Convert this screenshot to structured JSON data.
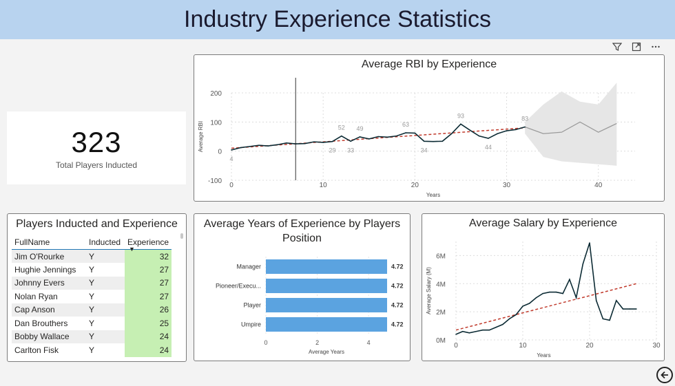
{
  "header": {
    "title": "Industry Experience Statistics"
  },
  "kpi": {
    "value": "323",
    "label": "Total Players Inducted"
  },
  "toolbar": {
    "icons": [
      "filter-icon",
      "focus-mode-icon",
      "more-options-icon"
    ]
  },
  "rbi_chart": {
    "title": "Average RBI by Experience",
    "ylabel": "Average RBI",
    "xlabel": "Years",
    "yticks": [
      "200",
      "100",
      "0",
      "-100"
    ],
    "xticks": [
      "0",
      "10",
      "20",
      "30",
      "40"
    ],
    "data_labels": [
      "4",
      "29",
      "52",
      "33",
      "49",
      "63",
      "34",
      "93",
      "44",
      "83"
    ]
  },
  "table": {
    "title": "Players Inducted and Experience",
    "columns": [
      "FullName",
      "Inducted",
      "Experience"
    ],
    "rows": [
      [
        "Jim O'Rourke",
        "Y",
        "32"
      ],
      [
        "Hughie Jennings",
        "Y",
        "27"
      ],
      [
        "Johnny Evers",
        "Y",
        "27"
      ],
      [
        "Nolan Ryan",
        "Y",
        "27"
      ],
      [
        "Cap Anson",
        "Y",
        "26"
      ],
      [
        "Dan Brouthers",
        "Y",
        "25"
      ],
      [
        "Bobby Wallace",
        "Y",
        "24"
      ],
      [
        "Carlton Fisk",
        "Y",
        "24"
      ]
    ]
  },
  "bar_chart": {
    "title_line1": "Average Years of Experience by Players",
    "title_line2": "Position",
    "xlabel": "Average Years",
    "xticks": [
      "0",
      "2",
      "4"
    ]
  },
  "salary_chart": {
    "title": "Average Salary by Experience",
    "ylabel": "Average Salary (M)",
    "xlabel": "Years",
    "yticks": [
      "6M",
      "4M",
      "2M",
      "0M"
    ],
    "xticks": [
      "0",
      "10",
      "20",
      "30"
    ]
  },
  "chart_data": [
    {
      "type": "line",
      "title": "Average RBI by Experience",
      "xlabel": "Years",
      "ylabel": "Average RBI",
      "xlim": [
        0,
        44
      ],
      "ylim": [
        -100,
        200
      ],
      "x": [
        0,
        1,
        2,
        3,
        4,
        5,
        6,
        7,
        8,
        9,
        10,
        11,
        12,
        13,
        14,
        15,
        16,
        17,
        18,
        19,
        20,
        21,
        22,
        23,
        24,
        25,
        26,
        27,
        28,
        29,
        30,
        31,
        32
      ],
      "series": [
        {
          "values": [
            4,
            12,
            16,
            20,
            18,
            22,
            28,
            25,
            26,
            32,
            30,
            33,
            52,
            34,
            49,
            42,
            50,
            48,
            52,
            63,
            62,
            34,
            33,
            34,
            60,
            93,
            72,
            52,
            44,
            60,
            70,
            74,
            83
          ]
        }
      ],
      "trendline": {
        "from": [
          0,
          10
        ],
        "to": [
          32,
          80
        ]
      },
      "forecast": {
        "x": [
          32,
          34,
          36,
          38,
          40,
          42
        ],
        "values": [
          83,
          60,
          65,
          100,
          65,
          95
        ],
        "upper": [
          100,
          160,
          205,
          170,
          160,
          235
        ],
        "lower": [
          60,
          -20,
          -35,
          -40,
          -45,
          -50
        ]
      },
      "reference_x": 7,
      "grid": true
    },
    {
      "type": "bar",
      "orientation": "horizontal",
      "title": "Average Years of Experience by Players Position",
      "xlabel": "Average Years",
      "categories": [
        "Manager",
        "Pioneer/Execu...",
        "Player",
        "Umpire"
      ],
      "values": [
        4.72,
        4.72,
        4.72,
        4.72
      ],
      "xlim": [
        0,
        4.72
      ],
      "color": "#5ba3e0"
    },
    {
      "type": "line",
      "title": "Average Salary by Experience",
      "xlabel": "Years",
      "ylabel": "Average Salary (M)",
      "xlim": [
        0,
        30
      ],
      "ylim": [
        0,
        7
      ],
      "x": [
        0,
        1,
        2,
        3,
        4,
        5,
        6,
        7,
        8,
        9,
        10,
        11,
        12,
        13,
        14,
        15,
        16,
        17,
        18,
        19,
        20,
        21,
        22,
        23,
        24,
        25,
        26,
        27
      ],
      "series": [
        {
          "values": [
            0.4,
            0.6,
            0.5,
            0.6,
            0.7,
            0.7,
            0.9,
            1.1,
            1.5,
            1.8,
            2.4,
            2.6,
            3.0,
            3.3,
            3.4,
            3.4,
            3.3,
            4.3,
            3.0,
            5.4,
            6.9,
            2.8,
            1.5,
            1.4,
            2.8,
            2.2,
            2.2,
            2.2
          ]
        }
      ],
      "trendline": {
        "from": [
          0,
          0.7
        ],
        "to": [
          27,
          4.0
        ]
      },
      "grid": true
    }
  ]
}
